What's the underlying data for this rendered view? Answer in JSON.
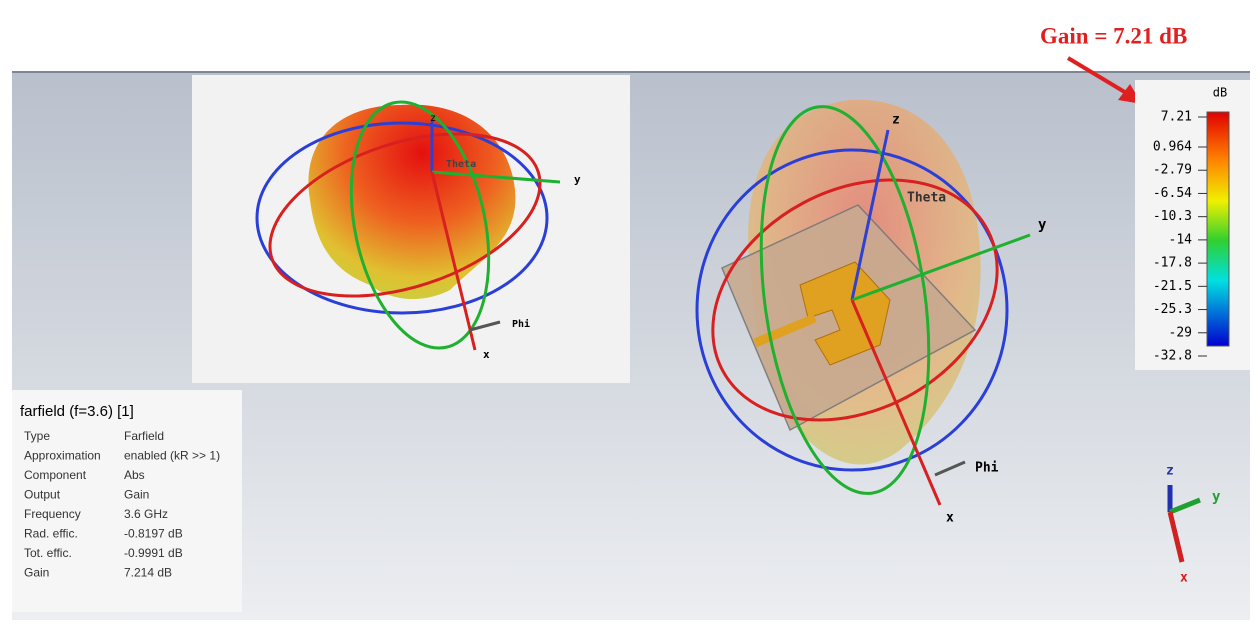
{
  "annotation": "Gain = 7.21 dB",
  "colorbar": {
    "unit": "dB",
    "labels": [
      "7.21",
      "0.964",
      "-2.79",
      "-6.54",
      "-10.3",
      "-14",
      "-17.8",
      "-21.5",
      "-25.3",
      "-29",
      "-32.8"
    ]
  },
  "info_panel": {
    "title": "farfield (f=3.6) [1]",
    "rows": [
      [
        "Type",
        "Farfield"
      ],
      [
        "Approximation",
        "enabled (kR >> 1)"
      ],
      [
        "Component",
        "Abs"
      ],
      [
        "Output",
        "Gain"
      ],
      [
        "Frequency",
        "3.6 GHz"
      ],
      [
        "Rad. effic.",
        "-0.8197 dB"
      ],
      [
        "Tot. effic.",
        "-0.9991 dB"
      ],
      [
        "Gain",
        "7.214 dB"
      ]
    ]
  },
  "left_plot": {
    "z": "z",
    "theta": "Theta",
    "y": "y",
    "x": "x",
    "phi": "Phi"
  },
  "right_plot": {
    "z": "z",
    "theta": "Theta",
    "y": "y",
    "x": "x",
    "phi": "Phi"
  },
  "triad": {
    "z": "z",
    "y": "y",
    "x": "x"
  }
}
